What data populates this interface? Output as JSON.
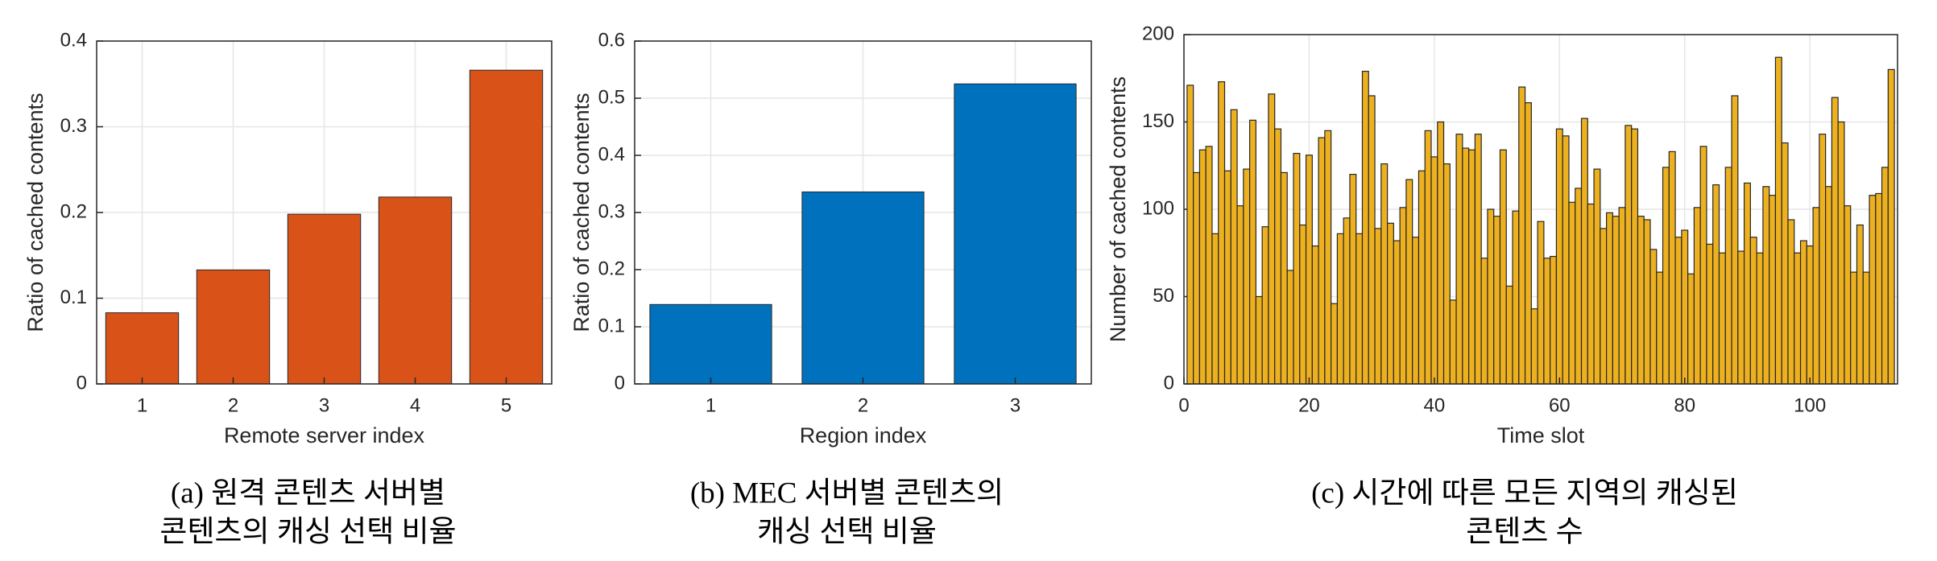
{
  "chart_data": [
    {
      "type": "bar",
      "categories": [
        "1",
        "2",
        "3",
        "4",
        "5"
      ],
      "values": [
        0.083,
        0.133,
        0.198,
        0.218,
        0.366
      ],
      "color": "#d95319",
      "ylim": [
        0,
        0.4
      ],
      "yticks": [
        0,
        0.1,
        0.2,
        0.3,
        0.4
      ],
      "grid": true,
      "x_label": "Remote server index",
      "y_label": "Ratio of cached contents",
      "caption": [
        "(a) 원격 콘텐츠 서버별",
        "콘텐츠의 캐싱 선택 비율"
      ]
    },
    {
      "type": "bar",
      "categories": [
        "1",
        "2",
        "3"
      ],
      "values": [
        0.139,
        0.336,
        0.525
      ],
      "color": "#0072bd",
      "ylim": [
        0,
        0.6
      ],
      "yticks": [
        0,
        0.1,
        0.2,
        0.3,
        0.4,
        0.5,
        0.6
      ],
      "grid": true,
      "x_label": "Region index",
      "y_label": "Ratio of cached contents",
      "caption": [
        "(b) MEC 서버별 콘텐츠의",
        "캐싱 선택 비율"
      ]
    },
    {
      "type": "histogram",
      "color": "#edb120",
      "x": [
        1,
        2,
        3,
        4,
        5,
        6,
        7,
        8,
        9,
        10,
        11,
        12,
        13,
        14,
        15,
        16,
        17,
        18,
        19,
        20,
        21,
        22,
        23,
        24,
        25,
        26,
        27,
        28,
        29,
        30,
        31,
        32,
        33,
        34,
        35,
        36,
        37,
        38,
        39,
        40,
        41,
        42,
        43,
        44,
        45,
        46,
        47,
        48,
        49,
        50,
        51,
        52,
        53,
        54,
        55,
        56,
        57,
        58,
        59,
        60,
        61,
        62,
        63,
        64,
        65,
        66,
        67,
        68,
        69,
        70,
        71,
        72,
        73,
        74,
        75,
        76,
        77,
        78,
        79,
        80,
        81,
        82,
        83,
        84,
        85,
        86,
        87,
        88,
        89,
        90,
        91,
        92,
        93,
        94,
        95,
        96,
        97,
        98,
        99,
        100,
        101,
        102,
        103,
        104,
        105,
        106,
        107,
        108,
        109,
        110,
        111,
        112,
        113
      ],
      "values": [
        171,
        121,
        134,
        136,
        86,
        173,
        122,
        157,
        102,
        123,
        151,
        50,
        90,
        166,
        146,
        121,
        65,
        132,
        91,
        131,
        79,
        141,
        145,
        46,
        86,
        95,
        120,
        86,
        179,
        165,
        89,
        126,
        92,
        82,
        101,
        117,
        84,
        122,
        145,
        130,
        150,
        126,
        48,
        143,
        135,
        134,
        143,
        72,
        100,
        96,
        134,
        56,
        99,
        170,
        161,
        43,
        93,
        72,
        73,
        146,
        142,
        104,
        112,
        152,
        103,
        123,
        89,
        98,
        96,
        101,
        148,
        146,
        96,
        94,
        77,
        64,
        124,
        133,
        84,
        88,
        63,
        101,
        136,
        80,
        114,
        75,
        124,
        165,
        76,
        115,
        84,
        75,
        113,
        108,
        187,
        138,
        94,
        75,
        82,
        79,
        101,
        143,
        113,
        164,
        150,
        102,
        64,
        91,
        64,
        108,
        109,
        124,
        180
      ],
      "xlim": [
        0,
        114
      ],
      "xticks": [
        0,
        20,
        40,
        60,
        80,
        100
      ],
      "ylim": [
        0,
        200
      ],
      "yticks": [
        0,
        50,
        100,
        150,
        200
      ],
      "grid": true,
      "x_label": "Time slot",
      "y_label": "Number of cached contents",
      "caption": [
        "(c) 시간에 따른 모든 지역의 캐싱된",
        "콘텐츠 수"
      ]
    }
  ]
}
